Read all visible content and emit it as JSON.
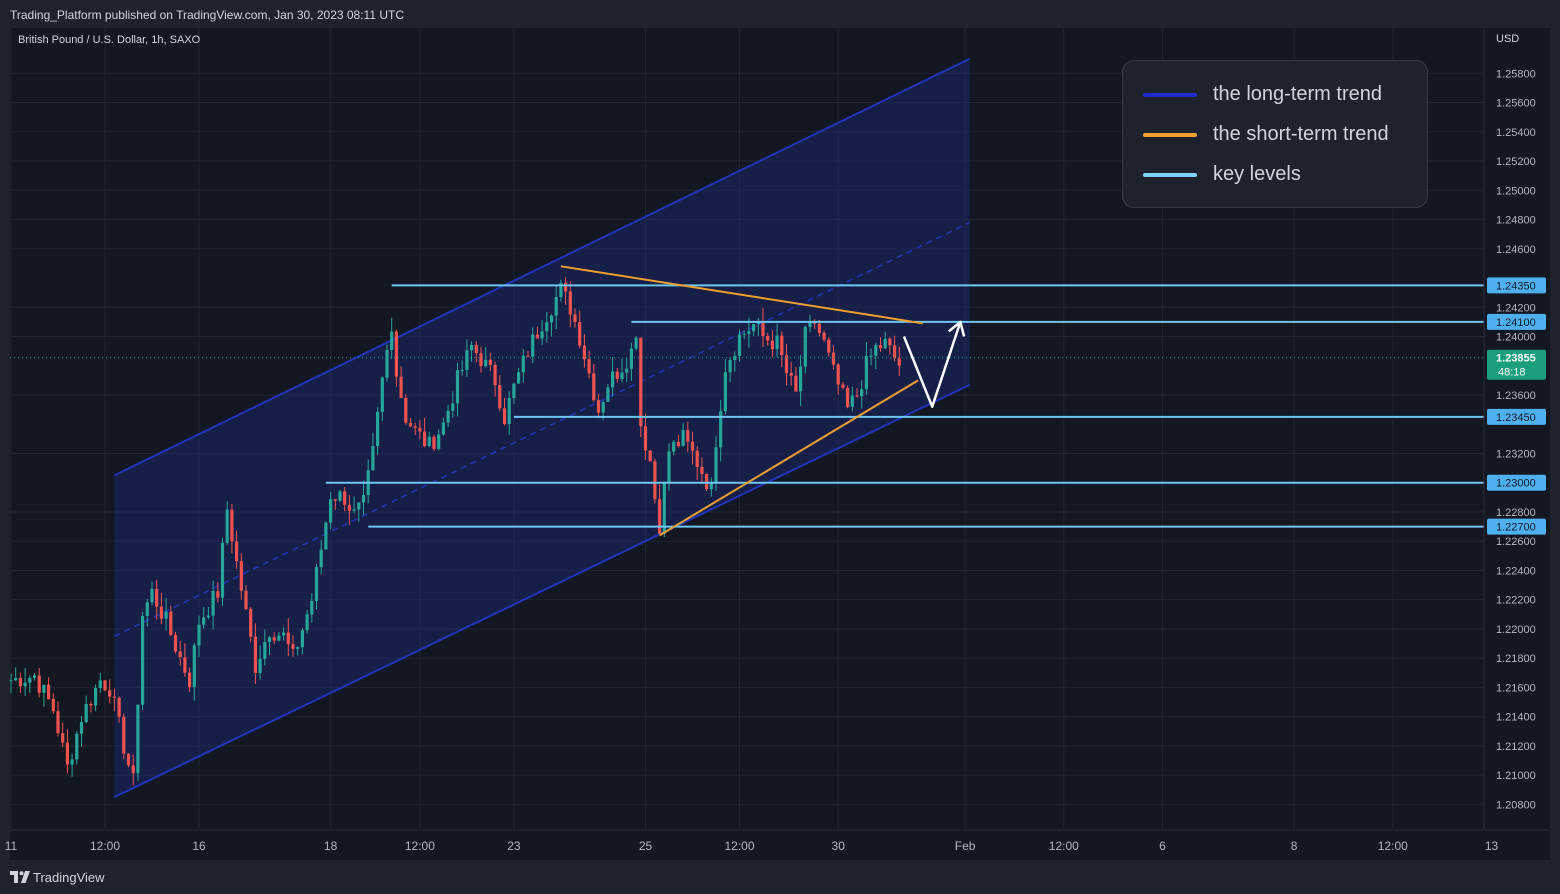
{
  "header": {
    "publish_info": "Trading_Platform published on TradingView.com, Jan 30, 2023 08:11 UTC"
  },
  "brand": {
    "name": "TradingView",
    "logo_icon": "tradingview-logo-icon"
  },
  "chart_data": {
    "type": "candlestick",
    "symbol": "British Pound / U.S. Dollar, 1h, SAXO",
    "currency": "USD",
    "y_range": [
      1.207,
      1.2598
    ],
    "y_ticks": [
      1.258,
      1.256,
      1.254,
      1.252,
      1.25,
      1.248,
      1.246,
      1.242,
      1.24,
      1.236,
      1.232,
      1.228,
      1.226,
      1.224,
      1.222,
      1.22,
      1.218,
      1.216,
      1.214,
      1.212,
      1.21,
      1.208
    ],
    "y_tick_labels": [
      "1.25800",
      "1.25600",
      "1.25400",
      "1.25200",
      "1.25000",
      "1.24800",
      "1.24600",
      "1.24200",
      "1.24000",
      "1.23600",
      "1.23200",
      "1.22800",
      "1.22600",
      "1.22400",
      "1.22200",
      "1.22000",
      "1.21800",
      "1.21600",
      "1.21400",
      "1.21200",
      "1.21000",
      "1.20800"
    ],
    "x_ticks": [
      {
        "label": "11",
        "bar": 0
      },
      {
        "label": "12:00",
        "bar": 20
      },
      {
        "label": "16",
        "bar": 40
      },
      {
        "label": "18",
        "bar": 68
      },
      {
        "label": "12:00",
        "bar": 87
      },
      {
        "label": "23",
        "bar": 107
      },
      {
        "label": "25",
        "bar": 135
      },
      {
        "label": "12:00",
        "bar": 155
      },
      {
        "label": "30",
        "bar": 176
      },
      {
        "label": "Feb",
        "bar": 203
      },
      {
        "label": "12:00",
        "bar": 224
      },
      {
        "label": "6",
        "bar": 245
      },
      {
        "label": "8",
        "bar": 273
      },
      {
        "label": "12:00",
        "bar": 294
      },
      {
        "label": "13",
        "bar": 315
      }
    ],
    "key_levels": [
      {
        "value": 1.2435,
        "label": "1.24350",
        "from_bar": 81
      },
      {
        "value": 1.241,
        "label": "1.24100",
        "from_bar": 132
      },
      {
        "value": 1.2345,
        "label": "1.23450",
        "from_bar": 107
      },
      {
        "value": 1.23,
        "label": "1.23000",
        "from_bar": 67
      },
      {
        "value": 1.227,
        "label": "1.22700",
        "from_bar": 76
      }
    ],
    "last_price": {
      "value": 1.23855,
      "label": "1.23855",
      "countdown": "48:18"
    },
    "channel": {
      "lower": [
        [
          22,
          1.2085
        ],
        [
          204,
          1.2367
        ]
      ],
      "upper": [
        [
          22,
          1.2305
        ],
        [
          204,
          1.259
        ]
      ],
      "mid": [
        [
          22,
          1.2195
        ],
        [
          204,
          1.2478
        ]
      ]
    },
    "short_term_trend": [
      {
        "from": [
          117,
          1.2448
        ],
        "to": [
          194,
          1.2409
        ]
      },
      {
        "from": [
          138,
          1.2264
        ],
        "to": [
          193,
          1.237
        ]
      }
    ],
    "projection": [
      [
        190,
        1.24
      ],
      [
        196,
        1.2352
      ],
      [
        202,
        1.241
      ]
    ],
    "candle_path": [
      [
        0,
        1.2165
      ],
      [
        5,
        1.2168
      ],
      [
        9,
        1.2145
      ],
      [
        12,
        1.2105
      ],
      [
        15,
        1.214
      ],
      [
        19,
        1.2165
      ],
      [
        21,
        1.216
      ],
      [
        24,
        1.212
      ],
      [
        26,
        1.2095
      ],
      [
        28,
        1.221
      ],
      [
        30,
        1.2225
      ],
      [
        33,
        1.2205
      ],
      [
        36,
        1.218
      ],
      [
        38,
        1.2165
      ],
      [
        40,
        1.2205
      ],
      [
        44,
        1.2225
      ],
      [
        46,
        1.2282
      ],
      [
        48,
        1.2245
      ],
      [
        50,
        1.221
      ],
      [
        52,
        1.2175
      ],
      [
        55,
        1.22
      ],
      [
        58,
        1.2195
      ],
      [
        60,
        1.218
      ],
      [
        62,
        1.22
      ],
      [
        64,
        1.222
      ],
      [
        66,
        1.2255
      ],
      [
        68,
        1.2292
      ],
      [
        71,
        1.229
      ],
      [
        73,
        1.2278
      ],
      [
        75,
        1.2285
      ],
      [
        77,
        1.232
      ],
      [
        79,
        1.237
      ],
      [
        81,
        1.241
      ],
      [
        82,
        1.2375
      ],
      [
        84,
        1.2345
      ],
      [
        86,
        1.2335
      ],
      [
        89,
        1.2325
      ],
      [
        92,
        1.234
      ],
      [
        95,
        1.237
      ],
      [
        98,
        1.2393
      ],
      [
        100,
        1.2385
      ],
      [
        103,
        1.237
      ],
      [
        105,
        1.2345
      ],
      [
        107,
        1.2365
      ],
      [
        110,
        1.239
      ],
      [
        113,
        1.241
      ],
      [
        117,
        1.2432
      ],
      [
        119,
        1.242
      ],
      [
        121,
        1.24
      ],
      [
        123,
        1.2375
      ],
      [
        125,
        1.235
      ],
      [
        127,
        1.2368
      ],
      [
        130,
        1.238
      ],
      [
        132,
        1.239
      ],
      [
        133,
        1.2405
      ],
      [
        134,
        1.234
      ],
      [
        136,
        1.2315
      ],
      [
        137,
        1.229
      ],
      [
        138,
        1.2272
      ],
      [
        140,
        1.2322
      ],
      [
        143,
        1.233
      ],
      [
        145,
        1.232
      ],
      [
        147,
        1.2308
      ],
      [
        149,
        1.2295
      ],
      [
        150,
        1.233
      ],
      [
        152,
        1.238
      ],
      [
        155,
        1.24
      ],
      [
        158,
        1.2408
      ],
      [
        160,
        1.24
      ],
      [
        163,
        1.2395
      ],
      [
        165,
        1.2375
      ],
      [
        167,
        1.236
      ],
      [
        169,
        1.24
      ],
      [
        171,
        1.241
      ],
      [
        173,
        1.2395
      ],
      [
        175,
        1.2375
      ],
      [
        177,
        1.2358
      ],
      [
        178,
        1.235
      ],
      [
        180,
        1.236
      ],
      [
        182,
        1.238
      ],
      [
        184,
        1.2392
      ],
      [
        186,
        1.2395
      ],
      [
        188,
        1.2385
      ],
      [
        189,
        1.238
      ]
    ]
  },
  "legend": [
    {
      "text": "the long-term trend",
      "color": "#1f2ecc"
    },
    {
      "text": "the short-term trend",
      "color": "#f0a030"
    },
    {
      "text": "key levels",
      "color": "#7dd3f8"
    }
  ],
  "colors": {
    "background": "#131722",
    "up_candle": "#26a69a",
    "down_candle": "#ef5350",
    "channel_fill": "rgba(30,45,140,0.35)",
    "channel_line": "#2234b8",
    "key_level": "#6ec6f5",
    "key_level_label_bg": "#4fb0ef",
    "last_price_bg": "#1a9e7e",
    "projection": "#ffffff"
  }
}
